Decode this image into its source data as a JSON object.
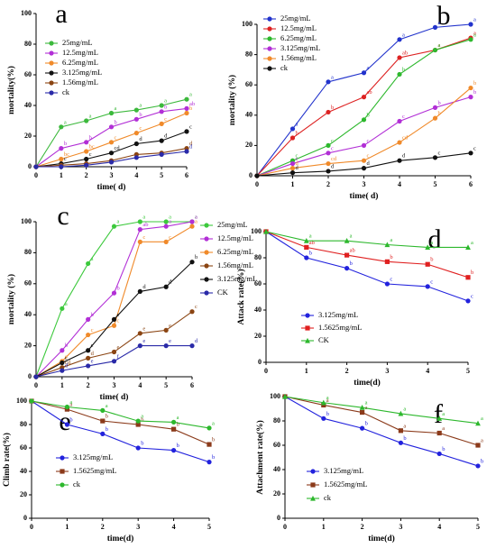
{
  "chart_data": [
    {
      "type": "line",
      "title": "a",
      "x_label": "time( d)",
      "y_label": "mortality(%)",
      "legend": "upper left",
      "x": [
        0,
        1,
        2,
        3,
        4,
        5,
        6
      ],
      "xlim": [
        0,
        6
      ],
      "xticks": [
        0,
        1,
        2,
        3,
        4,
        5,
        6
      ],
      "ylim": [
        0,
        100
      ],
      "yticks": [
        0,
        20,
        40,
        60,
        80,
        100
      ],
      "series": [
        {
          "name": "25mg/mL",
          "color": "#3cb93c",
          "marker": "circle",
          "values": [
            0,
            26,
            30,
            35,
            37,
            40,
            44
          ],
          "point_labels": [
            null,
            "a",
            "a",
            "a",
            "a",
            "a",
            "a"
          ]
        },
        {
          "name": "12.5mg/mL",
          "color": "#b22fd6",
          "marker": "circle",
          "values": [
            0,
            12,
            16,
            26,
            31,
            36,
            38
          ],
          "point_labels": [
            null,
            "b",
            "b",
            "b",
            "b",
            "b",
            "ab"
          ]
        },
        {
          "name": "6.25mg/mL",
          "color": "#f08a2a",
          "marker": "circle",
          "values": [
            0,
            5,
            10,
            16,
            22,
            28,
            35
          ],
          "point_labels": [
            null,
            "bc",
            "bc",
            "c",
            "c",
            "c",
            "b"
          ]
        },
        {
          "name": "3.125mg/mL",
          "color": "#111111",
          "marker": "circle",
          "values": [
            0,
            2,
            5,
            9,
            15,
            17,
            23
          ],
          "point_labels": [
            null,
            "c",
            "c",
            "cd",
            "d",
            "d",
            "c"
          ]
        },
        {
          "name": "1.56mg/mL",
          "color": "#8b4513",
          "marker": "circle",
          "values": [
            0,
            1,
            2,
            4,
            8,
            9,
            12
          ],
          "point_labels": [
            null,
            null,
            null,
            null,
            null,
            null,
            "d"
          ]
        },
        {
          "name": "ck",
          "color": "#2a2aa8",
          "marker": "circle",
          "values": [
            0,
            0,
            1,
            3,
            6,
            8,
            10
          ],
          "point_labels": [
            null,
            null,
            null,
            null,
            null,
            null,
            "d"
          ]
        }
      ]
    },
    {
      "type": "line",
      "title": "b",
      "x_label": "time( d)",
      "y_label": "mortality (%)",
      "legend": "upper left",
      "x": [
        0,
        1,
        2,
        3,
        4,
        5,
        6
      ],
      "xlim": [
        0,
        6
      ],
      "xticks": [
        0,
        1,
        2,
        3,
        4,
        5,
        6
      ],
      "ylim": [
        0,
        100
      ],
      "yticks": [
        0,
        20,
        40,
        60,
        80,
        100
      ],
      "series": [
        {
          "name": "25mg/mL",
          "color": "#2233cc",
          "marker": "circle",
          "values": [
            0,
            31,
            62,
            68,
            90,
            98,
            100
          ],
          "point_labels": [
            null,
            "a",
            "a",
            "a",
            "a",
            "a",
            "a"
          ]
        },
        {
          "name": "12.5mg/mL",
          "color": "#dd2222",
          "marker": "circle",
          "values": [
            0,
            25,
            42,
            52,
            78,
            83,
            91
          ],
          "point_labels": [
            null,
            "b",
            "b",
            "ab",
            "ab",
            "a",
            "a"
          ]
        },
        {
          "name": "6.25mg/mL",
          "color": "#2db82d",
          "marker": "circle",
          "values": [
            0,
            10,
            20,
            37,
            67,
            83,
            90
          ],
          "point_labels": [
            null,
            "c",
            "c",
            "b",
            "b",
            "a",
            "a"
          ]
        },
        {
          "name": "3.125mg/mL",
          "color": "#b22fd6",
          "marker": "circle",
          "values": [
            0,
            8,
            15,
            20,
            36,
            45,
            52
          ],
          "point_labels": [
            null,
            "c",
            "c",
            "c",
            "c",
            "b",
            "b"
          ]
        },
        {
          "name": "1.56mg/mL",
          "color": "#f08a2a",
          "marker": "circle",
          "values": [
            0,
            5,
            8,
            10,
            22,
            38,
            58
          ],
          "point_labels": [
            null,
            "d",
            "cd",
            "c",
            "cd",
            "b",
            "b"
          ]
        },
        {
          "name": "ck",
          "color": "#111111",
          "marker": "circle",
          "values": [
            0,
            2,
            3,
            5,
            10,
            12,
            15
          ],
          "point_labels": [
            null,
            "d",
            "d",
            "d",
            "d",
            "c",
            "c"
          ]
        }
      ]
    },
    {
      "type": "line",
      "title": "c",
      "x_label": "time( d)",
      "y_label": "mortality (%)",
      "legend": "right",
      "x": [
        0,
        1,
        2,
        3,
        4,
        5,
        6
      ],
      "xlim": [
        0,
        6
      ],
      "xticks": [
        0,
        1,
        2,
        3,
        4,
        5,
        6
      ],
      "ylim": [
        0,
        100
      ],
      "yticks": [
        0,
        20,
        40,
        60,
        80,
        100
      ],
      "series": [
        {
          "name": "25mg/mL",
          "color": "#3cc93c",
          "marker": "circle",
          "values": [
            0,
            44,
            73,
            97,
            100,
            100,
            100
          ],
          "point_labels": [
            null,
            "a",
            "a",
            "a",
            "a",
            "a",
            "a"
          ]
        },
        {
          "name": "12.5mg/mL",
          "color": "#b22fd6",
          "marker": "circle",
          "values": [
            0,
            17,
            37,
            54,
            95,
            97,
            100
          ],
          "point_labels": [
            null,
            "b",
            "b",
            "b",
            "ab",
            "a",
            "a"
          ]
        },
        {
          "name": "6.25mg/mL",
          "color": "#f08a2a",
          "marker": "circle",
          "values": [
            0,
            10,
            27,
            33,
            87,
            87,
            97
          ],
          "point_labels": [
            null,
            "c",
            "c",
            "c",
            "c",
            "c",
            "a"
          ]
        },
        {
          "name": "1.56mg/mL",
          "color": "#8b4513",
          "marker": "circle",
          "values": [
            0,
            6,
            12,
            16,
            28,
            30,
            42
          ],
          "point_labels": [
            null,
            "cd",
            "d",
            "e",
            "e",
            "e",
            "c"
          ]
        },
        {
          "name": "3.125mg/mL",
          "color": "#111111",
          "marker": "circle",
          "values": [
            0,
            9,
            17,
            37,
            55,
            58,
            74
          ],
          "point_labels": [
            null,
            "c",
            "c",
            "c",
            "d",
            "d",
            "b"
          ]
        },
        {
          "name": "CK",
          "color": "#2a2aa8",
          "marker": "circle",
          "values": [
            0,
            4,
            7,
            10,
            20,
            20,
            20
          ],
          "point_labels": [
            null,
            "d",
            "e",
            "f",
            "e",
            "e",
            "d"
          ]
        }
      ]
    },
    {
      "type": "line",
      "title": "d",
      "x_label": "time(d)",
      "y_label": "Attack rate(%)",
      "legend": "lower left",
      "x": [
        0,
        1,
        2,
        3,
        4,
        5
      ],
      "xlim": [
        0,
        5
      ],
      "xticks": [
        0,
        1,
        2,
        3,
        4,
        5
      ],
      "ylim": [
        0,
        100
      ],
      "yticks": [
        0,
        20,
        40,
        60,
        80,
        100
      ],
      "series": [
        {
          "name": "3.125mg/mL",
          "color": "#2222dd",
          "marker": "circle",
          "values": [
            100,
            80,
            72,
            60,
            58,
            47
          ],
          "point_labels": [
            null,
            "b",
            "b",
            "c",
            "c",
            "c"
          ]
        },
        {
          "name": "1.5625mg/mL",
          "color": "#e02020",
          "marker": "square",
          "values": [
            100,
            88,
            82,
            77,
            75,
            65
          ],
          "point_labels": [
            null,
            "ab",
            "ab",
            "b",
            "b",
            "b"
          ]
        },
        {
          "name": "CK",
          "color": "#2db82d",
          "marker": "triangle",
          "values": [
            100,
            93,
            93,
            90,
            88,
            88
          ],
          "point_labels": [
            null,
            "a",
            "a",
            "a",
            "a",
            "a"
          ]
        }
      ]
    },
    {
      "type": "line",
      "title": "e",
      "x_label": "time(d)",
      "y_label": "Climb rate(%)",
      "legend": "lower left",
      "x": [
        0,
        1,
        2,
        3,
        4,
        5
      ],
      "xlim": [
        0,
        5
      ],
      "xticks": [
        0,
        1,
        2,
        3,
        4,
        5
      ],
      "ylim": [
        0,
        100
      ],
      "yticks": [
        0,
        20,
        40,
        60,
        80,
        100
      ],
      "series": [
        {
          "name": "3.125mg/mL",
          "color": "#2222dd",
          "marker": "circle",
          "values": [
            100,
            80,
            72,
            60,
            58,
            48
          ],
          "point_labels": [
            null,
            "b",
            "b",
            "b",
            "b",
            "b"
          ]
        },
        {
          "name": "1.5625mg/mL",
          "color": "#8b3a1a",
          "marker": "square",
          "values": [
            100,
            93,
            83,
            80,
            76,
            63
          ],
          "point_labels": [
            null,
            "a",
            "b",
            "b",
            "b",
            "b"
          ]
        },
        {
          "name": "ck",
          "color": "#2db82d",
          "marker": "circle",
          "values": [
            100,
            95,
            92,
            83,
            82,
            77
          ],
          "point_labels": [
            null,
            "a",
            "a",
            "a",
            "a",
            "a"
          ]
        }
      ]
    },
    {
      "type": "line",
      "title": "f",
      "x_label": "time(d)",
      "y_label": "Attachment rate(%)",
      "legend": "lower left",
      "x": [
        0,
        1,
        2,
        3,
        4,
        5
      ],
      "xlim": [
        0,
        5
      ],
      "xticks": [
        0,
        1,
        2,
        3,
        4,
        5
      ],
      "ylim": [
        0,
        100
      ],
      "yticks": [
        0,
        20,
        40,
        60,
        80,
        100
      ],
      "series": [
        {
          "name": "3.125mg/mL",
          "color": "#2222dd",
          "marker": "circle",
          "values": [
            100,
            82,
            74,
            62,
            53,
            43
          ],
          "point_labels": [
            null,
            "b",
            "b",
            "b",
            "b",
            "b"
          ]
        },
        {
          "name": "1.5625mg/mL",
          "color": "#8b3a1a",
          "marker": "square",
          "values": [
            100,
            93,
            87,
            72,
            70,
            60
          ],
          "point_labels": [
            null,
            "a",
            "a",
            "a",
            "a",
            "a"
          ]
        },
        {
          "name": "ck",
          "color": "#2db82d",
          "marker": "triangle",
          "values": [
            100,
            95,
            91,
            86,
            82,
            78
          ],
          "point_labels": [
            null,
            "a",
            "a",
            "a",
            "a",
            "a"
          ]
        }
      ]
    }
  ]
}
